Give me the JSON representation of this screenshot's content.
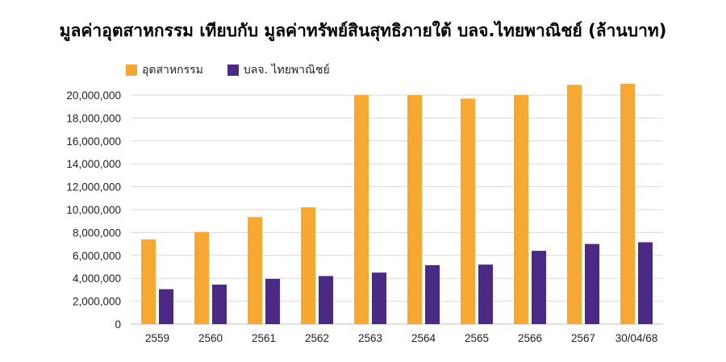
{
  "chart_data": {
    "type": "bar",
    "title": "มูลค่าอุตสาหกรรม เทียบกับ มูลค่าทรัพย์สินสุทธิภายใต้ บลจ.ไทยพาณิชย์ (ล้านบาท)",
    "categories": [
      "2559",
      "2560",
      "2561",
      "2562",
      "2563",
      "2564",
      "2565",
      "2566",
      "2567",
      "30/04/68"
    ],
    "series": [
      {
        "name": "อุตสาหกรรม",
        "color": "#F7A833",
        "values": [
          7400000,
          8050000,
          9350000,
          10200000,
          20000000,
          20000000,
          19700000,
          20000000,
          20900000,
          21000000
        ]
      },
      {
        "name": "บลจ. ไทยพาณิชย์",
        "color": "#4B2A85",
        "values": [
          3050000,
          3450000,
          3950000,
          4200000,
          4500000,
          5150000,
          5200000,
          6400000,
          7000000,
          7150000
        ]
      }
    ],
    "yticks": [
      "0",
      "2,000,000",
      "4,000,000",
      "6,000,000",
      "8,000,000",
      "10,000,000",
      "12,000,000",
      "14,000,000",
      "16,000,000",
      "18,000,000",
      "20,000,000"
    ],
    "ylim": [
      0,
      20000000
    ],
    "grid": true,
    "legend_position": "top-left"
  }
}
